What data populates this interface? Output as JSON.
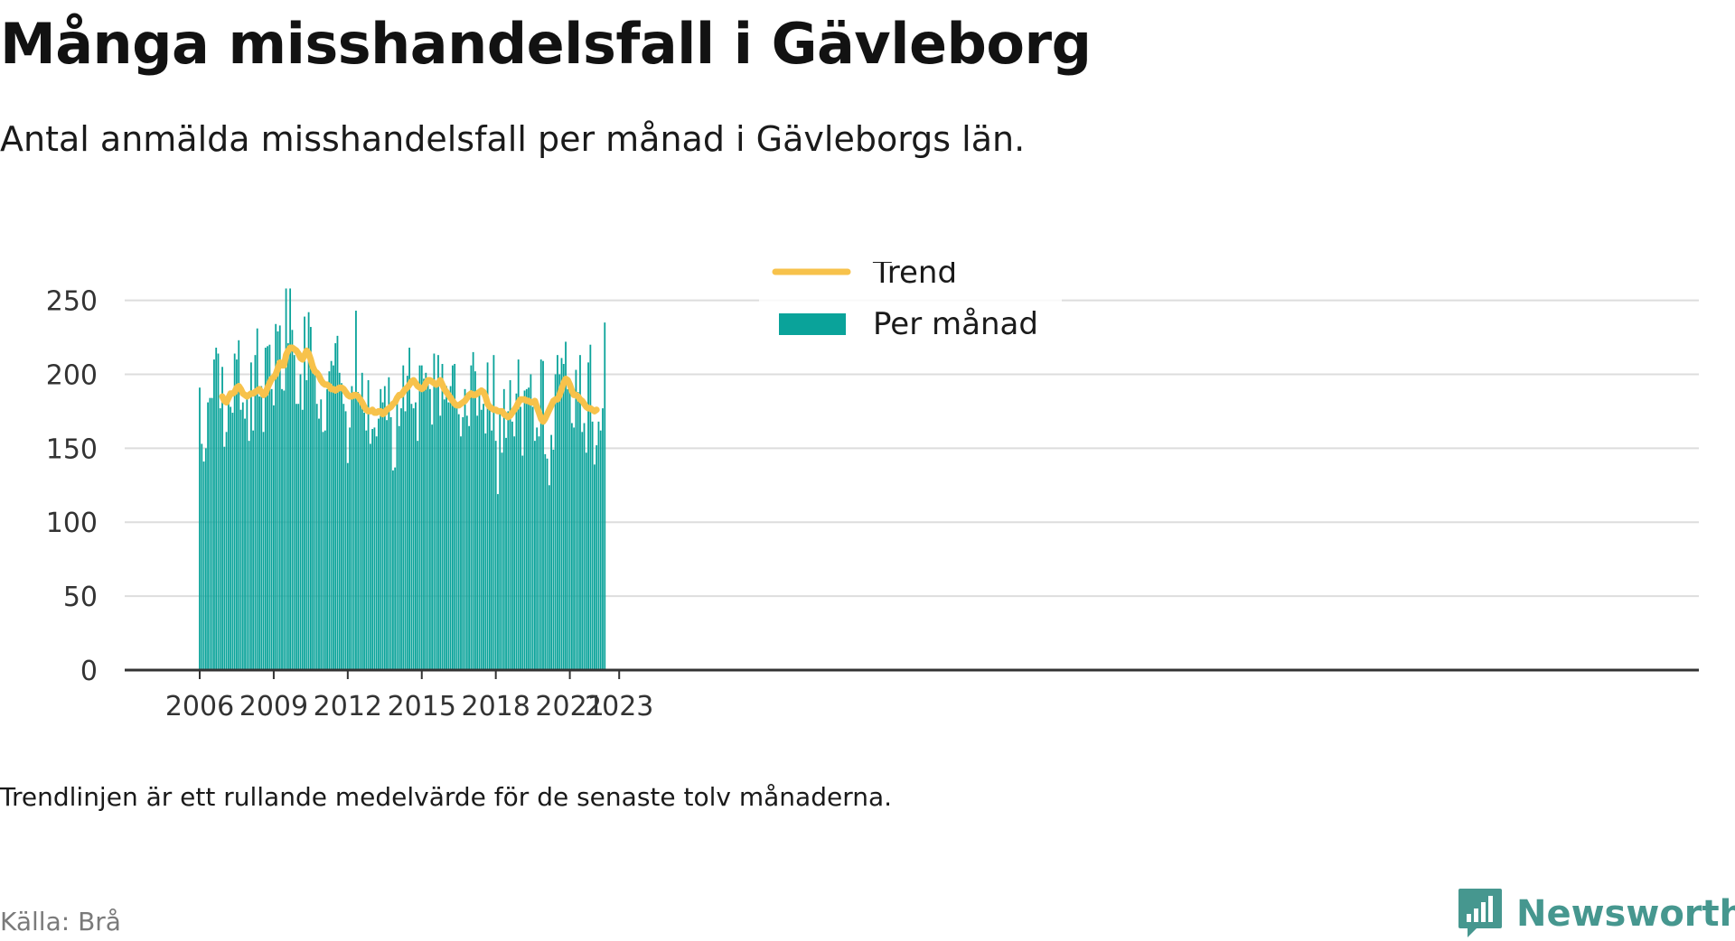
{
  "title": "Många misshandelsfall i Gävleborg",
  "subtitle": "Antal anmälda misshandelsfall per månad i Gävleborgs län.",
  "note": "Trendlinjen är ett rullande medelvärde för de senaste tolv månaderna.",
  "source": "Källa: Brå",
  "brand": "Newsworthy",
  "colors": {
    "bars": "#0aa39a",
    "trend": "#f7c24b",
    "axis": "#333333",
    "grid": "#dddddd",
    "brand": "#46978f"
  },
  "chart_data": {
    "type": "bar",
    "x_start": "2006-01",
    "x_end": "2023-05",
    "x_ticks": [
      "2006",
      "2009",
      "2012",
      "2015",
      "2018",
      "2021",
      "2023"
    ],
    "ylim": [
      0,
      265
    ],
    "y_ticks": [
      0,
      50,
      100,
      150,
      200,
      250
    ],
    "grid": true,
    "legend_position": "top-center",
    "legend": [
      "Trend",
      "Per månad"
    ],
    "series": [
      {
        "name": "Per månad",
        "type": "bar",
        "values": [
          191,
          153,
          141,
          150,
          181,
          184,
          184,
          210,
          218,
          214,
          177,
          205,
          151,
          161,
          183,
          178,
          174,
          214,
          210,
          223,
          176,
          181,
          170,
          183,
          155,
          208,
          162,
          213,
          231,
          185,
          192,
          161,
          218,
          219,
          220,
          190,
          179,
          234,
          229,
          233,
          190,
          189,
          258,
          221,
          258,
          230,
          213,
          180,
          180,
          200,
          176,
          239,
          196,
          242,
          232,
          202,
          205,
          180,
          170,
          183,
          161,
          162,
          190,
          202,
          209,
          206,
          221,
          226,
          201,
          194,
          180,
          175,
          140,
          164,
          192,
          186,
          243,
          188,
          182,
          201,
          174,
          162,
          196,
          153,
          163,
          164,
          158,
          170,
          190,
          181,
          192,
          169,
          198,
          171,
          135,
          137,
          184,
          165,
          177,
          206,
          175,
          199,
          218,
          180,
          177,
          181,
          155,
          206,
          206,
          197,
          201,
          193,
          190,
          166,
          214,
          192,
          213,
          172,
          207,
          183,
          192,
          181,
          192,
          206,
          207,
          181,
          173,
          158,
          171,
          190,
          172,
          165,
          206,
          215,
          202,
          172,
          189,
          176,
          180,
          160,
          208,
          176,
          162,
          213,
          155,
          119,
          176,
          147,
          190,
          157,
          175,
          196,
          168,
          158,
          187,
          210,
          178,
          145,
          189,
          190,
          191,
          200,
          178,
          155,
          164,
          158,
          210,
          209,
          146,
          143,
          125,
          159,
          149,
          200,
          213,
          200,
          211,
          207,
          222,
          190,
          194,
          167,
          164,
          203,
          188,
          213,
          161,
          167,
          147,
          208,
          220,
          168,
          139,
          152,
          168,
          162,
          177,
          235
        ]
      },
      {
        "name": "Trend",
        "type": "line",
        "start": "2006-12",
        "values": [
          185,
          182,
          181,
          184,
          187,
          187,
          188,
          191,
          192,
          190,
          187,
          186,
          185,
          186,
          187,
          187,
          188,
          189,
          190,
          188,
          186,
          187,
          191,
          194,
          197,
          198,
          200,
          204,
          208,
          206,
          206,
          213,
          216,
          218,
          218,
          217,
          216,
          214,
          211,
          210,
          213,
          216,
          214,
          210,
          205,
          202,
          201,
          199,
          196,
          194,
          193,
          193,
          192,
          190,
          190,
          189,
          190,
          191,
          191,
          190,
          188,
          186,
          185,
          185,
          186,
          186,
          185,
          183,
          181,
          178,
          176,
          175,
          175,
          176,
          174,
          174,
          175,
          175,
          173,
          174,
          176,
          177,
          178,
          180,
          181,
          184,
          186,
          186,
          188,
          190,
          191,
          193,
          195,
          196,
          194,
          192,
          191,
          190,
          191,
          194,
          196,
          196,
          195,
          194,
          193,
          194,
          196,
          193,
          190,
          188,
          186,
          184,
          182,
          180,
          179,
          179,
          180,
          181,
          182,
          184,
          186,
          187,
          186,
          186,
          187,
          188,
          189,
          188,
          185,
          180,
          178,
          177,
          176,
          176,
          175,
          175,
          175,
          173,
          172,
          171,
          172,
          174,
          176,
          178,
          181,
          183,
          183,
          183,
          182,
          182,
          181,
          181,
          182,
          178,
          174,
          170,
          168,
          170,
          173,
          176,
          179,
          182,
          183,
          183,
          186,
          190,
          194,
          197,
          196,
          193,
          189,
          186,
          186,
          185,
          183,
          182,
          180,
          178,
          177,
          177,
          176,
          175,
          176
        ]
      }
    ]
  }
}
